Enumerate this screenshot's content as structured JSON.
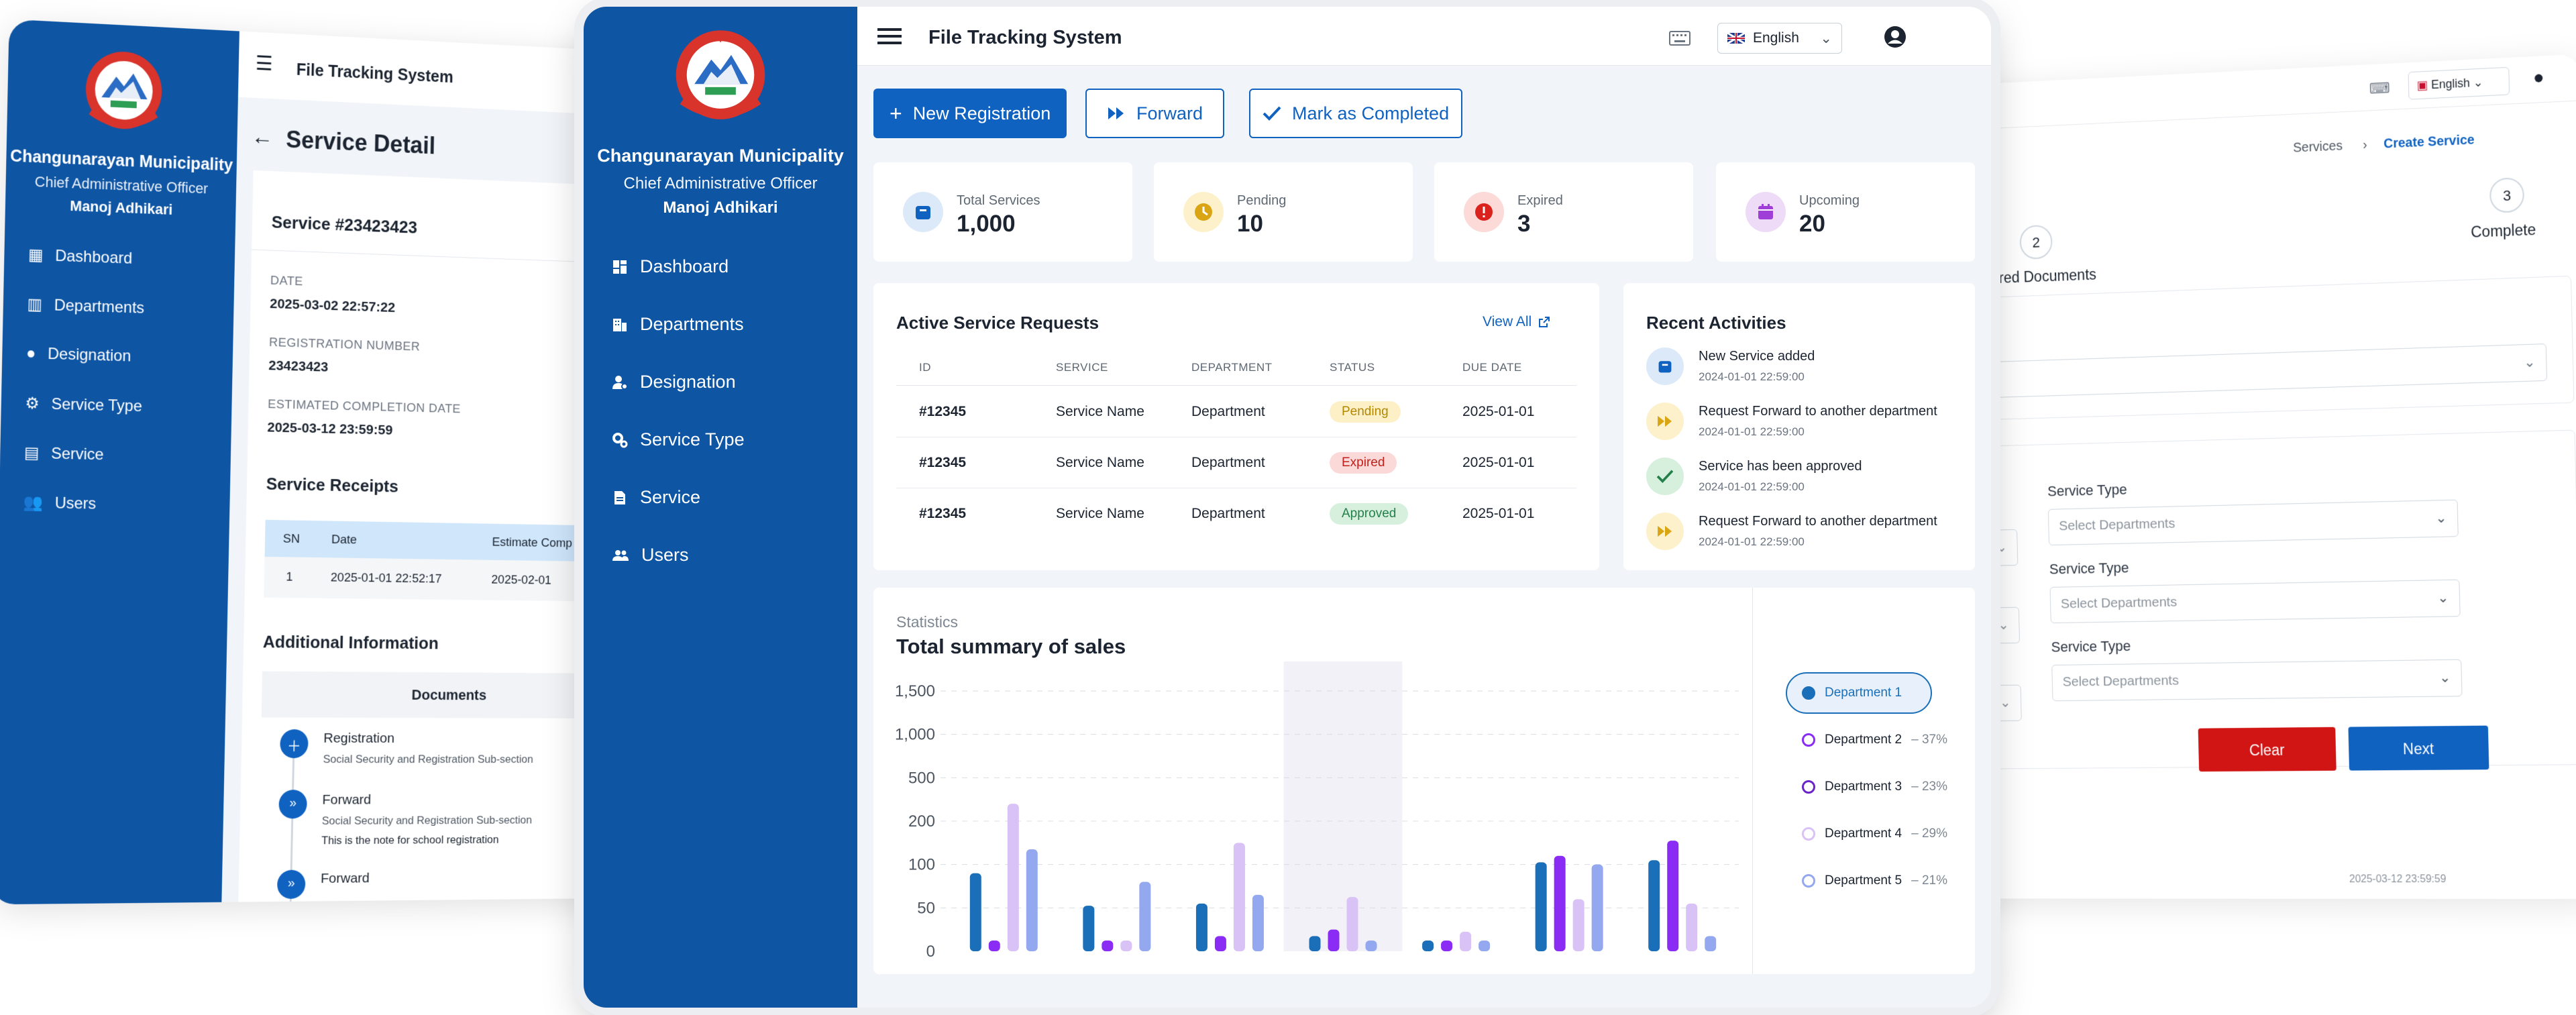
{
  "app": {
    "title": "File Tracking System",
    "language": "English",
    "org_name": "Changunarayan Municipality",
    "org_role": "Chief Administrative Officer",
    "user_name": "Manoj Adhikari"
  },
  "colors": {
    "primary": "#0e55a4",
    "accent": "#1062c1",
    "pending": "#f6c23e",
    "expired": "#e0403a",
    "approved": "#2f9e55",
    "upcoming": "#8e44ad"
  },
  "nav": [
    {
      "label": "Dashboard",
      "icon": "dashboard-icon"
    },
    {
      "label": "Departments",
      "icon": "departments-icon"
    },
    {
      "label": "Designation",
      "icon": "designation-icon"
    },
    {
      "label": "Service Type",
      "icon": "service-type-icon"
    },
    {
      "label": "Service",
      "icon": "service-icon"
    },
    {
      "label": "Users",
      "icon": "users-icon"
    }
  ],
  "actions": {
    "new": "New Registration",
    "forward": "Forward",
    "complete": "Mark as Completed"
  },
  "stats": [
    {
      "label": "Total Services",
      "value": "1,000",
      "icon": "box-icon"
    },
    {
      "label": "Pending",
      "value": "10",
      "icon": "clock-icon"
    },
    {
      "label": "Expired",
      "value": "3",
      "icon": "alert-icon"
    },
    {
      "label": "Upcoming",
      "value": "20",
      "icon": "calendar-icon"
    }
  ],
  "requests": {
    "title": "Active Service Requests",
    "view_all": "View All",
    "columns": [
      "ID",
      "SERVICE",
      "DEPARTMENT",
      "STATUS",
      "DUE DATE"
    ],
    "rows": [
      {
        "id": "#12345",
        "service": "Service Name",
        "department": "Department",
        "status": "Pending",
        "due": "2025-01-01"
      },
      {
        "id": "#12345",
        "service": "Service Name",
        "department": "Department",
        "status": "Expired",
        "due": "2025-01-01"
      },
      {
        "id": "#12345",
        "service": "Service Name",
        "department": "Department",
        "status": "Approved",
        "due": "2025-01-01"
      }
    ]
  },
  "activities": {
    "title": "Recent Activities",
    "items": [
      {
        "text": "New Service added",
        "time": "2024-01-01 22:59:00"
      },
      {
        "text": "Request Forward to another department",
        "time": "2024-01-01 22:59:00"
      },
      {
        "text": "Service has been approved",
        "time": "2024-01-01 22:59:00"
      },
      {
        "text": "Request Forward to another department",
        "time": "2024-01-01 22:59:00"
      }
    ]
  },
  "statistics": {
    "label": "Statistics",
    "title": "Total summary of sales"
  },
  "chart_data": {
    "type": "bar",
    "title": "Total summary of sales",
    "y_ticks": [
      "1,500",
      "1,000",
      "500",
      "200",
      "100",
      "50",
      "0"
    ],
    "groups": 7,
    "highlighted_group": 3,
    "series": [
      {
        "name": "Department 1",
        "pct": "",
        "color": "#1a6fb8",
        "levels": [
          1.8,
          1.05,
          1.1,
          0.35,
          -3.2,
          2.05,
          2.1
        ]
      },
      {
        "name": "Department 2",
        "pct": "37%",
        "color": "#8b2cf5",
        "levels": [
          -0.4,
          -0.05,
          0.35,
          0.5,
          -1.7,
          2.2,
          2.55
        ]
      },
      {
        "name": "Department 3",
        "pct": "23%",
        "color": "#d9c2f5",
        "levels": [
          3.4,
          -1.4,
          2.5,
          1.25,
          0.45,
          1.2,
          1.1
        ]
      },
      {
        "name": "Department 4",
        "pct": "29%",
        "color": "#93a8ef",
        "levels": [
          2.35,
          1.6,
          1.3,
          -0.8,
          -0.85,
          2.0,
          0.35
        ]
      },
      {
        "name": "Department 5",
        "pct": "21%",
        "color": "#93a8ef",
        "levels": []
      }
    ]
  },
  "left_card": {
    "title": "Service Detail",
    "service_no": "Service #23423423",
    "date_label": "DATE",
    "date": "2025-03-02 22:57:22",
    "reg_label": "REGISTRATION NUMBER",
    "reg": "23423423",
    "eta_label": "ESTIMATED COMPLETION DATE",
    "eta": "2025-03-12 23:59:59",
    "receipts_title": "Service Receipts",
    "receipt_cols": [
      "SN",
      "Date",
      "Estimate Comp"
    ],
    "receipt_row": {
      "sn": "1",
      "date": "2025-01-01 22:52:17",
      "est": "2025-02-01"
    },
    "additional": "Additional Information",
    "documents": "Documents",
    "timeline": [
      {
        "title": "Registration",
        "sub": "Social Security and Registration Sub-section",
        "note": ""
      },
      {
        "title": "Forward",
        "sub": "Social Security and Registration Sub-section",
        "note": "This is the note for school registration"
      },
      {
        "title": "Forward",
        "sub": "",
        "note": ""
      }
    ]
  },
  "right_card": {
    "breadcrumb_parent": "Services",
    "breadcrumb_current": "Create Service",
    "step2_num": "2",
    "step2": "Required Documents",
    "step3_num": "3",
    "step3": "Complete",
    "field_label": "Service Type",
    "placeholder": "Select Departments",
    "clear": "Clear",
    "next": "Next",
    "footer_date": "2025-03-12 23:59:59"
  }
}
